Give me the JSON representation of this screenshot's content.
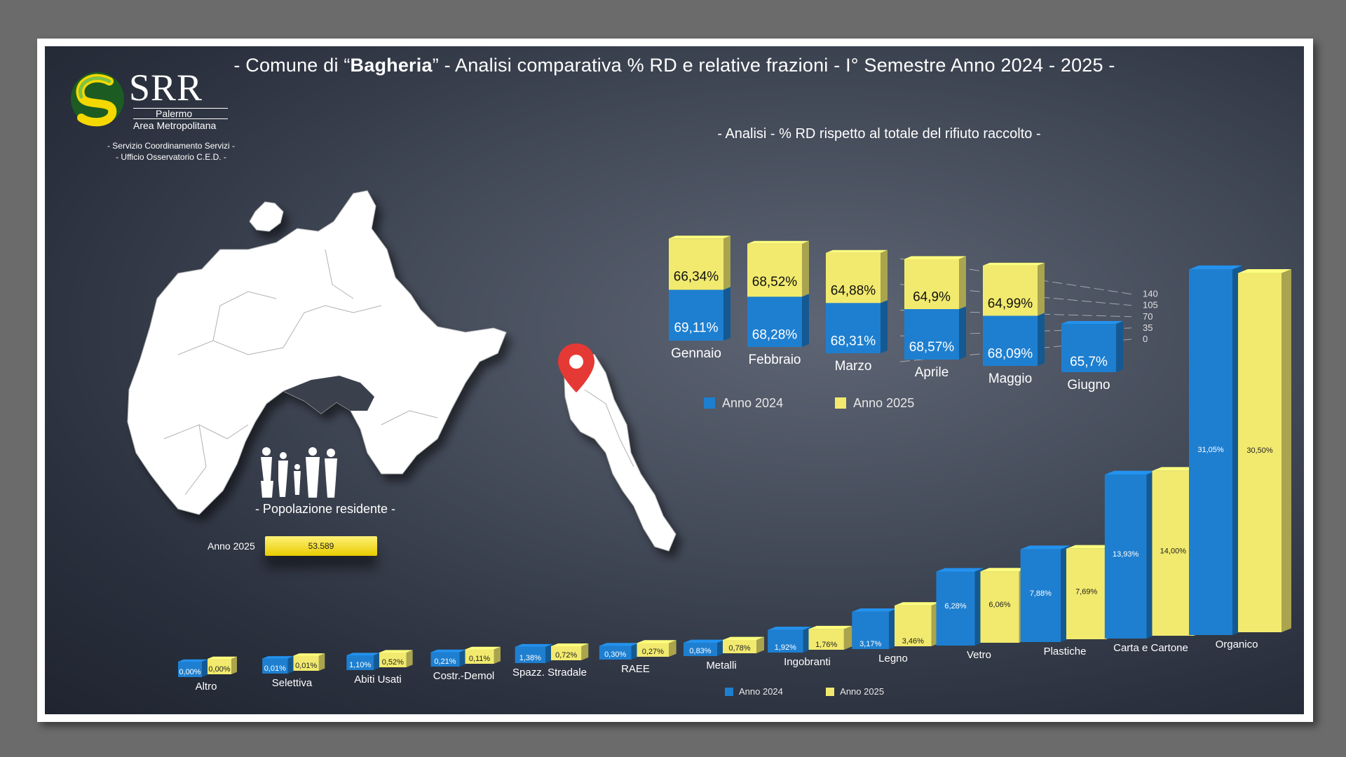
{
  "title": {
    "prefix": "- Comune di “",
    "bold": "Bagheria",
    "suffix": "” - Analisi comparativa % RD e relative frazioni - I° Semestre Anno 2024 - 2025 -"
  },
  "logo": {
    "word": "SRR",
    "line1": "Palermo",
    "line2": "Area Metropolitana",
    "service1": "- Servizio Coordinamento Servizi -",
    "service2": "- Ufficio Osservatorio C.E.D. -"
  },
  "colors": {
    "anno_2024": "#1e7fd0",
    "anno_2025": "#f2ea6e",
    "pin": "#e53935"
  },
  "population": {
    "label": "- Popolazione residente -",
    "year": "Anno 2025",
    "value": "53.589"
  },
  "chart_data": [
    {
      "type": "bar",
      "stacked": true,
      "title": "- Analisi - % RD rispetto al totale del rifiuto raccolto -",
      "categories": [
        "Gennaio",
        "Febbraio",
        "Marzo",
        "Aprile",
        "Maggio",
        "Giugno"
      ],
      "series": [
        {
          "name": "Anno 2024",
          "values": [
            69.11,
            68.28,
            68.31,
            68.57,
            68.09,
            65.7
          ],
          "labels": [
            "69,11%",
            "68,28%",
            "68,31%",
            "68,57%",
            "68,09%",
            "65,7%"
          ]
        },
        {
          "name": "Anno 2025",
          "values": [
            66.34,
            68.52,
            64.88,
            64.9,
            64.99,
            null
          ],
          "labels": [
            "66,34%",
            "68,52%",
            "64,88%",
            "64,9%",
            "64,99%",
            ""
          ]
        }
      ],
      "yticks": [
        "140",
        "105",
        "70",
        "35",
        "0"
      ],
      "ylim": [
        0,
        140
      ],
      "grid": true,
      "legend": "bottom"
    },
    {
      "type": "bar",
      "title": "",
      "categories": [
        "Altro",
        "Selettiva",
        "Abiti Usati",
        "Costr.-Demol",
        "Spazz. Stradale",
        "RAEE",
        "Metalli",
        "Ingobranti",
        "Legno",
        "Vetro",
        "Plastiche",
        "Carta e Cartone",
        "Organico"
      ],
      "series": [
        {
          "name": "Anno 2024",
          "values": [
            0.0,
            0.01,
            1.1,
            0.21,
            1.38,
            0.3,
            0.83,
            1.92,
            3.17,
            6.28,
            7.88,
            13.93,
            31.05
          ],
          "labels": [
            "0,00%",
            "0,01%",
            "1,10%",
            "0,21%",
            "1,38%",
            "0,30%",
            "0,83%",
            "1,92%",
            "3,17%",
            "6,28%",
            "7,88%",
            "13,93%",
            "31,05%"
          ]
        },
        {
          "name": "Anno 2025",
          "values": [
            0.0,
            0.01,
            0.52,
            0.11,
            0.72,
            0.27,
            0.78,
            1.76,
            3.46,
            6.06,
            7.69,
            14.0,
            30.5
          ],
          "labels": [
            "0,00%",
            "0,01%",
            "0,52%",
            "0,11%",
            "0,72%",
            "0,27%",
            "0,78%",
            "1,76%",
            "3,46%",
            "6,06%",
            "7,69%",
            "14,00%",
            "30,50%"
          ]
        }
      ],
      "legend": "bottom"
    }
  ]
}
